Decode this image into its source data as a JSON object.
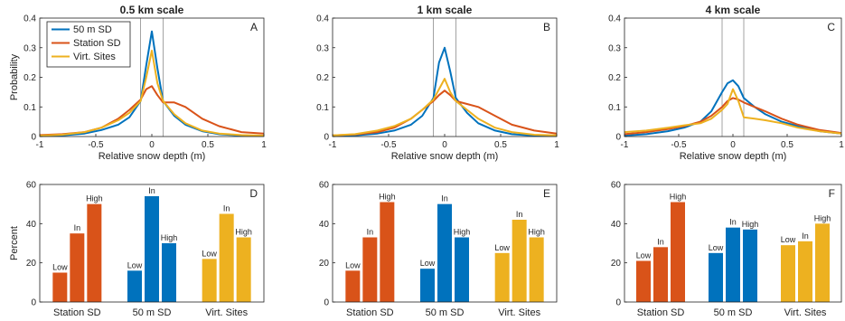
{
  "colors": {
    "blue": "#0072BD",
    "orange": "#D95319",
    "yellow": "#EDB120",
    "axis": "#222222",
    "vline": "#8c8c8c"
  },
  "legend": {
    "items": [
      {
        "label": "50 m SD",
        "color": "#0072BD"
      },
      {
        "label": "Station SD",
        "color": "#D95319"
      },
      {
        "label": "Virt. Sites",
        "color": "#EDB120"
      }
    ],
    "placement": "top-left of panel A"
  },
  "chart_data": [
    {
      "type": "line",
      "panel_letter": "A",
      "title": "0.5 km scale",
      "xlabel": "Relative snow depth (m)",
      "ylabel": "Probability",
      "xlim": [
        -1,
        1
      ],
      "ylim": [
        0,
        0.4
      ],
      "xticks": [
        "-1",
        "-0.5",
        "0",
        "0.5",
        "1"
      ],
      "yticks": [
        "0",
        "0.1",
        "0.2",
        "0.3",
        "0.4"
      ],
      "vlines": [
        -0.1,
        0.1
      ],
      "x": [
        -1,
        -0.8,
        -0.6,
        -0.45,
        -0.3,
        -0.2,
        -0.1,
        -0.05,
        0,
        0.05,
        0.1,
        0.2,
        0.3,
        0.45,
        0.6,
        0.8,
        1
      ],
      "series": [
        {
          "name": "50 m SD",
          "color": "#0072BD",
          "values": [
            0.002,
            0.004,
            0.01,
            0.022,
            0.04,
            0.065,
            0.12,
            0.24,
            0.355,
            0.23,
            0.12,
            0.07,
            0.04,
            0.018,
            0.008,
            0.003,
            0.002
          ]
        },
        {
          "name": "Station SD",
          "color": "#D95319",
          "values": [
            0.005,
            0.008,
            0.015,
            0.03,
            0.06,
            0.09,
            0.125,
            0.16,
            0.17,
            0.14,
            0.115,
            0.115,
            0.1,
            0.06,
            0.035,
            0.015,
            0.01
          ]
        },
        {
          "name": "Virt. Sites",
          "color": "#EDB120",
          "values": [
            0.003,
            0.006,
            0.015,
            0.03,
            0.055,
            0.08,
            0.12,
            0.2,
            0.29,
            0.18,
            0.12,
            0.075,
            0.045,
            0.02,
            0.01,
            0.005,
            0.003
          ]
        }
      ]
    },
    {
      "type": "line",
      "panel_letter": "B",
      "title": "1 km scale",
      "xlabel": "Relative snow depth (m)",
      "ylabel": "",
      "xlim": [
        -1,
        1
      ],
      "ylim": [
        0,
        0.4
      ],
      "xticks": [
        "-1",
        "-0.5",
        "0",
        "0.5",
        "1"
      ],
      "yticks": [
        "0",
        "0.1",
        "0.2",
        "0.3",
        "0.4"
      ],
      "vlines": [
        -0.1,
        0.1
      ],
      "x": [
        -1,
        -0.8,
        -0.6,
        -0.45,
        -0.3,
        -0.2,
        -0.1,
        -0.05,
        0,
        0.05,
        0.1,
        0.2,
        0.3,
        0.45,
        0.6,
        0.8,
        1
      ],
      "series": [
        {
          "name": "50 m SD",
          "color": "#0072BD",
          "values": [
            0.002,
            0.004,
            0.01,
            0.02,
            0.04,
            0.07,
            0.13,
            0.25,
            0.3,
            0.22,
            0.13,
            0.08,
            0.045,
            0.02,
            0.008,
            0.003,
            0.002
          ]
        },
        {
          "name": "Station SD",
          "color": "#D95319",
          "values": [
            0.004,
            0.007,
            0.015,
            0.03,
            0.06,
            0.09,
            0.12,
            0.14,
            0.155,
            0.14,
            0.12,
            0.11,
            0.1,
            0.07,
            0.04,
            0.02,
            0.01
          ]
        },
        {
          "name": "Virt. Sites",
          "color": "#EDB120",
          "values": [
            0.004,
            0.008,
            0.02,
            0.035,
            0.06,
            0.09,
            0.125,
            0.16,
            0.195,
            0.15,
            0.12,
            0.09,
            0.06,
            0.03,
            0.015,
            0.006,
            0.004
          ]
        }
      ]
    },
    {
      "type": "line",
      "panel_letter": "C",
      "title": "4 km scale",
      "xlabel": "Relative snow depth (m)",
      "ylabel": "",
      "xlim": [
        -1,
        1
      ],
      "ylim": [
        0,
        0.4
      ],
      "xticks": [
        "-1",
        "-0.5",
        "0",
        "0.5",
        "1"
      ],
      "yticks": [
        "0",
        "0.1",
        "0.2",
        "0.3",
        "0.4"
      ],
      "vlines": [
        -0.1,
        0.1
      ],
      "x": [
        -1,
        -0.8,
        -0.6,
        -0.45,
        -0.3,
        -0.2,
        -0.1,
        -0.05,
        0,
        0.05,
        0.1,
        0.2,
        0.3,
        0.45,
        0.6,
        0.8,
        1
      ],
      "series": [
        {
          "name": "50 m SD",
          "color": "#0072BD",
          "values": [
            0.003,
            0.008,
            0.018,
            0.03,
            0.05,
            0.085,
            0.15,
            0.18,
            0.19,
            0.17,
            0.13,
            0.1,
            0.075,
            0.05,
            0.035,
            0.018,
            0.01
          ]
        },
        {
          "name": "Station SD",
          "color": "#D95319",
          "values": [
            0.008,
            0.015,
            0.025,
            0.035,
            0.05,
            0.07,
            0.1,
            0.12,
            0.13,
            0.125,
            0.115,
            0.1,
            0.085,
            0.06,
            0.04,
            0.022,
            0.012
          ]
        },
        {
          "name": "Virt. Sites",
          "color": "#EDB120",
          "values": [
            0.015,
            0.02,
            0.03,
            0.038,
            0.045,
            0.06,
            0.09,
            0.11,
            0.16,
            0.12,
            0.065,
            0.06,
            0.055,
            0.045,
            0.03,
            0.018,
            0.01
          ]
        }
      ]
    },
    {
      "type": "bar",
      "panel_letter": "D",
      "title": "",
      "ylabel": "Percent",
      "ylim": [
        0,
        60
      ],
      "yticks": [
        "0",
        "20",
        "40",
        "60"
      ],
      "groups": [
        "Station SD",
        "50 m SD",
        "Virt. Sites"
      ],
      "categories": [
        "Low",
        "In",
        "High"
      ],
      "group_colors": [
        "#D95319",
        "#0072BD",
        "#EDB120"
      ],
      "values": [
        [
          15,
          35,
          50
        ],
        [
          16,
          54,
          30
        ],
        [
          22,
          45,
          33
        ]
      ]
    },
    {
      "type": "bar",
      "panel_letter": "E",
      "title": "",
      "ylabel": "",
      "ylim": [
        0,
        60
      ],
      "yticks": [
        "0",
        "20",
        "40",
        "60"
      ],
      "groups": [
        "Station SD",
        "50 m SD",
        "Virt. Sites"
      ],
      "categories": [
        "Low",
        "In",
        "High"
      ],
      "group_colors": [
        "#D95319",
        "#0072BD",
        "#EDB120"
      ],
      "values": [
        [
          16,
          33,
          51
        ],
        [
          17,
          50,
          33
        ],
        [
          25,
          42,
          33
        ]
      ]
    },
    {
      "type": "bar",
      "panel_letter": "F",
      "title": "",
      "ylabel": "",
      "ylim": [
        0,
        60
      ],
      "yticks": [
        "0",
        "20",
        "40",
        "60"
      ],
      "groups": [
        "Station SD",
        "50 m SD",
        "Virt. Sites"
      ],
      "categories": [
        "Low",
        "In",
        "High"
      ],
      "group_colors": [
        "#D95319",
        "#0072BD",
        "#EDB120"
      ],
      "values": [
        [
          21,
          28,
          51
        ],
        [
          25,
          38,
          37
        ],
        [
          29,
          31,
          40
        ]
      ]
    }
  ]
}
